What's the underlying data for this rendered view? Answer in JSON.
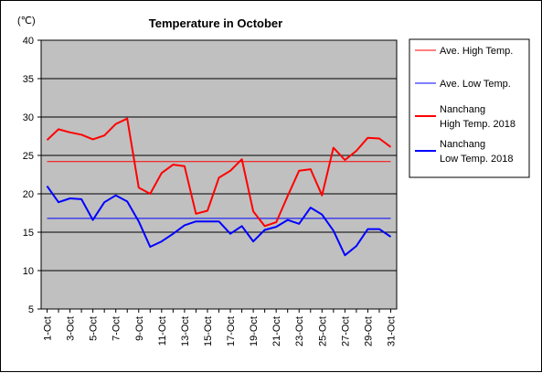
{
  "chart_data": {
    "type": "line",
    "title": "Temperature in October",
    "unit_label": "(℃)",
    "ylim": [
      5,
      40
    ],
    "y_ticks": [
      5,
      10,
      15,
      20,
      25,
      30,
      35,
      40
    ],
    "x": [
      1,
      2,
      3,
      4,
      5,
      6,
      7,
      8,
      9,
      10,
      11,
      12,
      13,
      14,
      15,
      16,
      17,
      18,
      19,
      20,
      21,
      22,
      23,
      24,
      25,
      26,
      27,
      28,
      29,
      30,
      31
    ],
    "x_tick_labels": [
      "1-Oct",
      "3-Oct",
      "5-Oct",
      "7-Oct",
      "9-Oct",
      "11-Oct",
      "13-Oct",
      "15-Oct",
      "17-Oct",
      "19-Oct",
      "21-Oct",
      "23-Oct",
      "25-Oct",
      "27-Oct",
      "29-Oct",
      "31-Oct"
    ],
    "grid": true,
    "legend_position": "right",
    "series": [
      {
        "name": "Ave. High Temp.",
        "color": "#ff0000",
        "width": 1,
        "values": [
          24.2,
          24.2,
          24.2,
          24.2,
          24.2,
          24.2,
          24.2,
          24.2,
          24.2,
          24.2,
          24.2,
          24.2,
          24.2,
          24.2,
          24.2,
          24.2,
          24.2,
          24.2,
          24.2,
          24.2,
          24.2,
          24.2,
          24.2,
          24.2,
          24.2,
          24.2,
          24.2,
          24.2,
          24.2,
          24.2,
          24.2
        ]
      },
      {
        "name": "Ave. Low Temp.",
        "color": "#0000ff",
        "width": 1,
        "values": [
          16.8,
          16.8,
          16.8,
          16.8,
          16.8,
          16.8,
          16.8,
          16.8,
          16.8,
          16.8,
          16.8,
          16.8,
          16.8,
          16.8,
          16.8,
          16.8,
          16.8,
          16.8,
          16.8,
          16.8,
          16.8,
          16.8,
          16.8,
          16.8,
          16.8,
          16.8,
          16.8,
          16.8,
          16.8,
          16.8,
          16.8
        ]
      },
      {
        "name": "Nanchang High Temp. 2018",
        "name_lines": [
          "Nanchang",
          "High Temp. 2018"
        ],
        "color": "#ff0000",
        "width": 2,
        "values": [
          27.0,
          28.4,
          28.0,
          27.7,
          27.1,
          27.6,
          29.1,
          29.8,
          20.8,
          20.0,
          22.7,
          23.8,
          23.6,
          17.4,
          17.8,
          22.1,
          23.0,
          24.5,
          17.7,
          15.8,
          16.3,
          19.7,
          23.0,
          23.2,
          19.8,
          26.0,
          24.4,
          25.6,
          27.3,
          27.2,
          26.1
        ]
      },
      {
        "name": "Nanchang Low Temp. 2018",
        "name_lines": [
          "Nanchang",
          "Low Temp. 2018"
        ],
        "color": "#0000ff",
        "width": 2,
        "values": [
          21.0,
          18.9,
          19.4,
          19.3,
          16.6,
          18.9,
          19.8,
          19.0,
          16.4,
          13.1,
          13.8,
          14.8,
          15.9,
          16.4,
          16.4,
          16.4,
          14.8,
          15.8,
          13.8,
          15.3,
          15.7,
          16.6,
          16.1,
          18.2,
          17.3,
          15.2,
          12.0,
          13.2,
          15.4,
          15.4,
          14.4
        ]
      }
    ]
  }
}
